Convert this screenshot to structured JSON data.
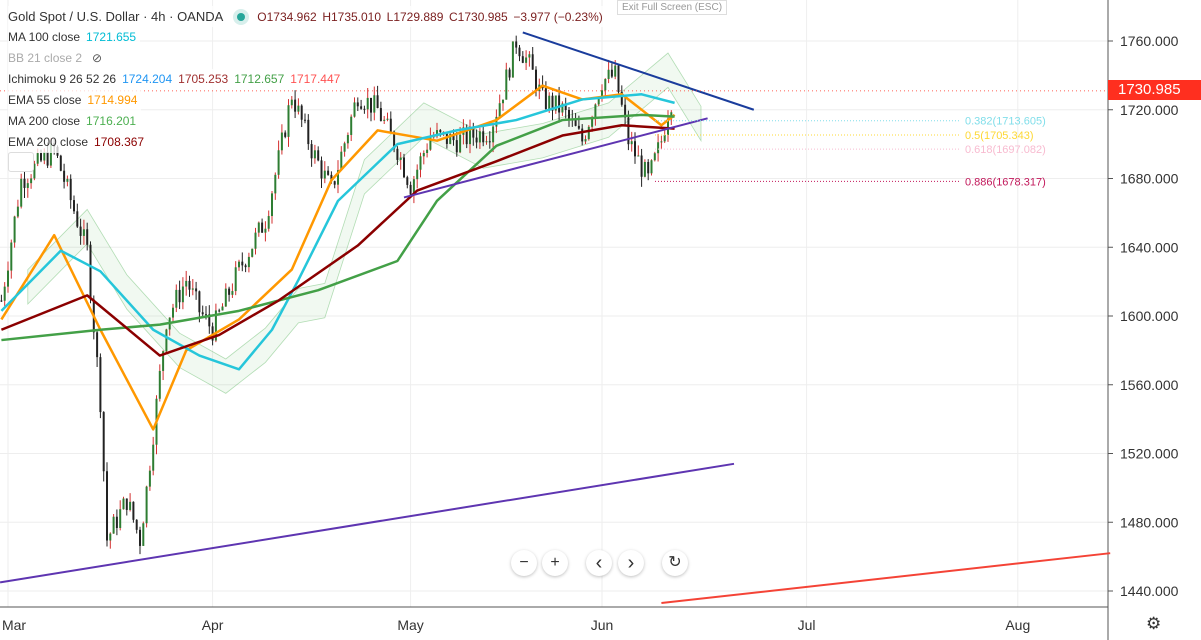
{
  "header": {
    "symbol": "Gold Spot / U.S. Dollar · 4h · OANDA",
    "open": "O1734.962",
    "high": "H1735.010",
    "low": "L1729.889",
    "close": "C1730.985",
    "change": "−3.977 (−0.23%)"
  },
  "tooltip": "Exit Full Screen (ESC)",
  "indicators": [
    {
      "label": "MA 100 close",
      "values": [
        "1721.655"
      ],
      "colors": [
        "#00bcd4"
      ]
    },
    {
      "label": "BB 21 close 2",
      "values": [],
      "colors": [],
      "hidden": true
    },
    {
      "label": "Ichimoku 9 26 52 26",
      "values": [
        "1724.204",
        "1705.253",
        "1712.657",
        "1717.447"
      ],
      "colors": [
        "#2196f3",
        "#a03030",
        "#43a047",
        "#ff5252"
      ]
    },
    {
      "label": "EMA 55 close",
      "values": [
        "1714.994"
      ],
      "colors": [
        "#ff9800"
      ]
    },
    {
      "label": "MA 200 close",
      "values": [
        "1716.201"
      ],
      "colors": [
        "#4caf50"
      ]
    },
    {
      "label": "EMA 200 close",
      "values": [
        "1708.367"
      ],
      "colors": [
        "#8b0000"
      ]
    }
  ],
  "last_price": "1730.985",
  "controls": {
    "zoom_out": "−",
    "zoom_in": "+",
    "left": "‹",
    "right": "›",
    "reset": "↻"
  },
  "settings_icon": "gear-icon",
  "chart_data": {
    "type": "candlestick",
    "title": "Gold Spot / U.S. Dollar · 4h · OANDA",
    "x_unit": "days since Mar 1",
    "x_ticks": [
      {
        "label": "Mar",
        "day": 0
      },
      {
        "label": "Apr",
        "day": 31
      },
      {
        "label": "May",
        "day": 61
      },
      {
        "label": "Jun",
        "day": 90
      },
      {
        "label": "Jul",
        "day": 121
      },
      {
        "label": "Aug",
        "day": 153
      }
    ],
    "y_ticks": [
      "1760.000",
      "1720.000",
      "1680.000",
      "1640.000",
      "1600.000",
      "1560.000",
      "1520.000",
      "1480.000",
      "1440.000"
    ],
    "ylim": [
      1432,
      1772
    ],
    "xlim": [
      -1.2,
      166.7
    ],
    "price_path": [
      [
        -1,
        1609
      ],
      [
        2,
        1679
      ],
      [
        7,
        1697
      ],
      [
        12,
        1638
      ],
      [
        14,
        1551
      ],
      [
        15,
        1470
      ],
      [
        18,
        1493
      ],
      [
        20,
        1470
      ],
      [
        21,
        1499
      ],
      [
        24,
        1598
      ],
      [
        27,
        1621
      ],
      [
        29,
        1603
      ],
      [
        31,
        1592
      ],
      [
        35,
        1627
      ],
      [
        39,
        1656
      ],
      [
        41,
        1691
      ],
      [
        43,
        1729
      ],
      [
        46,
        1697
      ],
      [
        49,
        1673
      ],
      [
        53,
        1729
      ],
      [
        56,
        1720
      ],
      [
        59,
        1697
      ],
      [
        61,
        1676
      ],
      [
        64,
        1705
      ],
      [
        68,
        1702
      ],
      [
        73,
        1708
      ],
      [
        75,
        1731
      ],
      [
        77,
        1760
      ],
      [
        79,
        1746
      ],
      [
        81,
        1726
      ],
      [
        84,
        1720
      ],
      [
        87,
        1702
      ],
      [
        90,
        1737
      ],
      [
        92,
        1740
      ],
      [
        94,
        1702
      ],
      [
        97,
        1679
      ],
      [
        99,
        1702
      ],
      [
        100,
        1720
      ],
      [
        101,
        1731
      ]
    ],
    "series": [
      {
        "name": "EMA 55 close",
        "color": "#ff9800",
        "points": [
          [
            -1,
            1598
          ],
          [
            7,
            1647
          ],
          [
            14,
            1592
          ],
          [
            22,
            1534
          ],
          [
            27,
            1580
          ],
          [
            35,
            1598
          ],
          [
            43,
            1627
          ],
          [
            49,
            1679
          ],
          [
            56,
            1708
          ],
          [
            65,
            1702
          ],
          [
            74,
            1714
          ],
          [
            81,
            1734
          ],
          [
            87,
            1726
          ],
          [
            93,
            1729
          ],
          [
            99,
            1711
          ],
          [
            101,
            1717
          ]
        ]
      },
      {
        "name": "MA 100 close",
        "color": "#26c6da",
        "points": [
          [
            -1,
            1603
          ],
          [
            8,
            1638
          ],
          [
            14,
            1626
          ],
          [
            22,
            1592
          ],
          [
            29,
            1577
          ],
          [
            35,
            1569
          ],
          [
            40,
            1592
          ],
          [
            44,
            1621
          ],
          [
            50,
            1667
          ],
          [
            59,
            1700
          ],
          [
            68,
            1708
          ],
          [
            77,
            1714
          ],
          [
            87,
            1726
          ],
          [
            96,
            1729
          ],
          [
            101,
            1724
          ]
        ]
      },
      {
        "name": "MA 200 close",
        "color": "#43a047",
        "points": [
          [
            -1,
            1586
          ],
          [
            14,
            1592
          ],
          [
            23,
            1595
          ],
          [
            35,
            1603
          ],
          [
            47,
            1615
          ],
          [
            59,
            1632
          ],
          [
            65,
            1667
          ],
          [
            74,
            1699
          ],
          [
            84,
            1714
          ],
          [
            96,
            1717
          ],
          [
            101,
            1716
          ]
        ]
      },
      {
        "name": "EMA 200 close",
        "color": "#8b0000",
        "points": [
          [
            -1,
            1592
          ],
          [
            12,
            1612
          ],
          [
            23,
            1577
          ],
          [
            32,
            1589
          ],
          [
            41,
            1609
          ],
          [
            53,
            1641
          ],
          [
            62,
            1673
          ],
          [
            74,
            1690
          ],
          [
            84,
            1705
          ],
          [
            93,
            1711
          ],
          [
            101,
            1709
          ]
        ]
      }
    ],
    "trendlines": [
      {
        "name": "resistance",
        "color": "#1a3c9c",
        "from": [
          78,
          1765
        ],
        "to": [
          113,
          1720
        ]
      },
      {
        "name": "support-short",
        "color": "#5e35b1",
        "from": [
          60,
          1669
        ],
        "to": [
          106,
          1715
        ]
      },
      {
        "name": "support-long",
        "color": "#5e35b1",
        "from": [
          -1.2,
          1445
        ],
        "to": [
          110,
          1514
        ]
      },
      {
        "name": "red-line",
        "color": "#f44336",
        "from": [
          99,
          1433
        ],
        "to": [
          167,
          1462
        ]
      }
    ],
    "fib_levels": [
      {
        "label": "0.382(1713.605)",
        "price": 1713.605,
        "color": "#80deea"
      },
      {
        "label": "0.5(1705.343)",
        "price": 1705.343,
        "color": "#fdd835"
      },
      {
        "label": "0.618(1697.082)",
        "price": 1697.082,
        "color": "#f8bbd0"
      },
      {
        "label": "0.886(1678.317)",
        "price": 1678.317,
        "color": "#c2185b"
      }
    ],
    "grid": true
  }
}
